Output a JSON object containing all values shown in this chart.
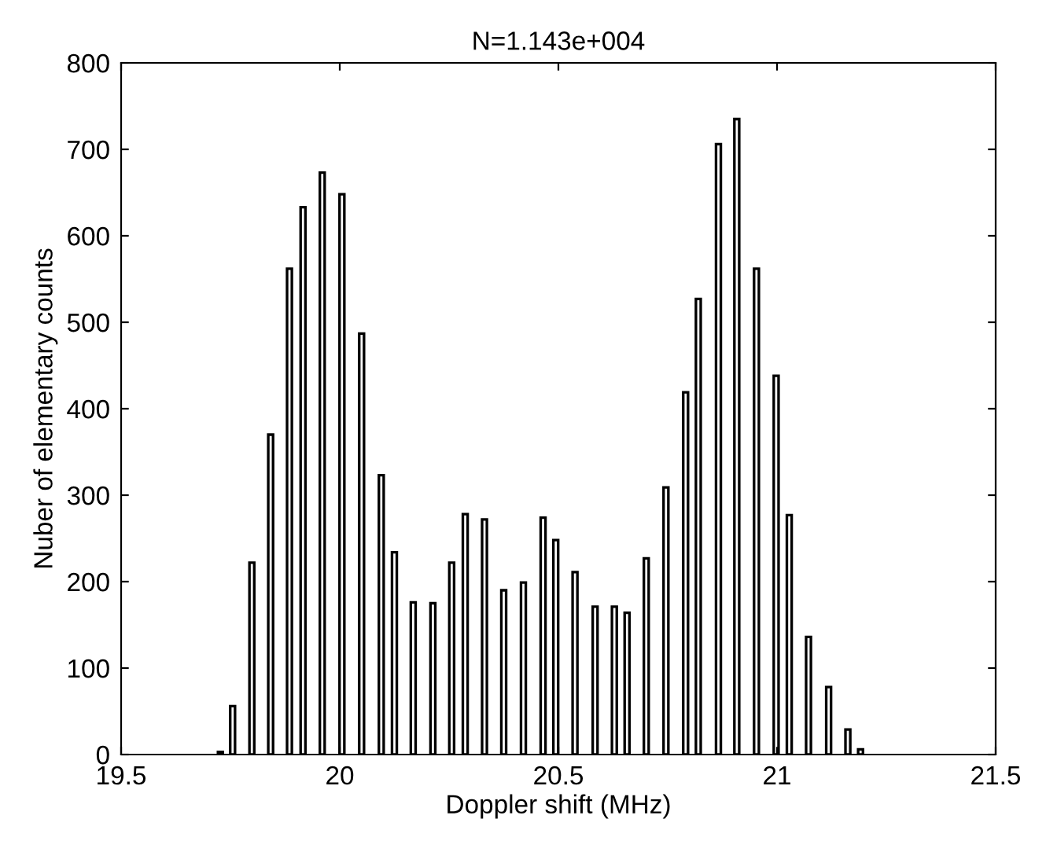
{
  "chart_data": {
    "type": "bar",
    "title": "N=1.143e+004",
    "xlabel": "Doppler shift (MHz)",
    "ylabel": "Nuber of elementary counts",
    "x": [
      19.727,
      19.755,
      19.799,
      19.842,
      19.885,
      19.916,
      19.96,
      20.005,
      20.05,
      20.095,
      20.125,
      20.168,
      20.213,
      20.256,
      20.287,
      20.331,
      20.375,
      20.42,
      20.465,
      20.494,
      20.538,
      20.584,
      20.628,
      20.657,
      20.701,
      20.746,
      20.791,
      20.82,
      20.866,
      20.908,
      20.953,
      20.998,
      21.028,
      21.072,
      21.118,
      21.162,
      21.191
    ],
    "values": [
      3,
      56,
      222,
      370,
      562,
      633,
      673,
      648,
      487,
      323,
      234,
      176,
      175,
      222,
      278,
      272,
      190,
      199,
      274,
      248,
      211,
      171,
      171,
      164,
      227,
      309,
      419,
      527,
      706,
      735,
      562,
      438,
      277,
      136,
      78,
      29,
      6
    ],
    "color": "#000000",
    "xlim": [
      19.5,
      21.5
    ],
    "ylim": [
      0,
      800
    ],
    "xticks": [
      19.5,
      20,
      20.5,
      21,
      21.5
    ],
    "yticks": [
      0,
      100,
      200,
      300,
      400,
      500,
      600,
      700,
      800
    ],
    "grid": false,
    "legend": false
  }
}
